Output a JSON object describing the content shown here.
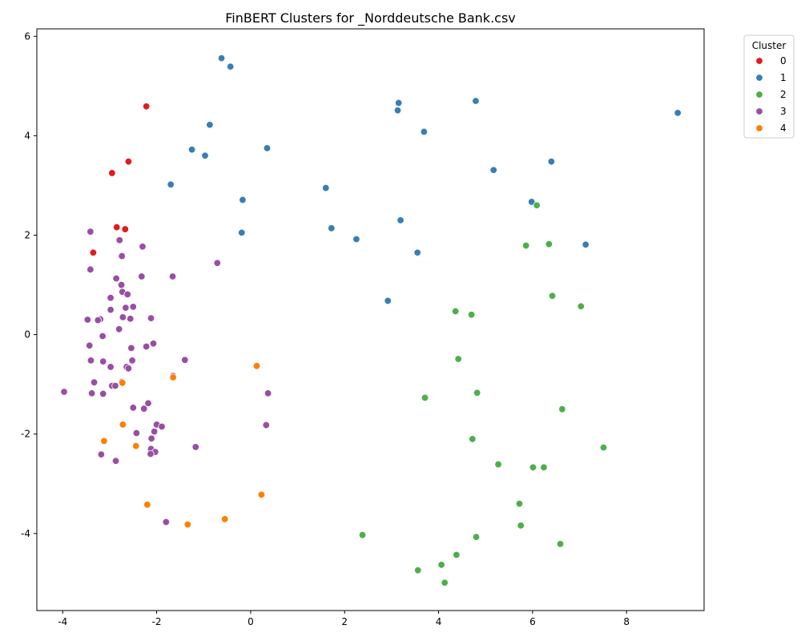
{
  "chart_data": {
    "type": "scatter",
    "title": "FinBERT Clusters for _Norddeutsche Bank.csv",
    "xlabel": "",
    "ylabel": "",
    "xlim": [
      -4.55,
      9.65
    ],
    "ylim": [
      -5.55,
      6.15
    ],
    "x_ticks": [
      -4,
      -2,
      0,
      2,
      4,
      6,
      8
    ],
    "y_ticks": [
      -4,
      -2,
      0,
      2,
      4,
      6
    ],
    "grid": false,
    "legend": {
      "title": "Cluster",
      "placement": "outside-top-right"
    },
    "series": [
      {
        "name": "0",
        "color": "#e41a1c",
        "points": [
          [
            -2.22,
            4.59
          ],
          [
            -2.6,
            3.48
          ],
          [
            -2.95,
            3.25
          ],
          [
            -2.85,
            2.16
          ],
          [
            -2.67,
            2.12
          ],
          [
            -3.35,
            1.66
          ],
          [
            -3.35,
            1.65
          ]
        ]
      },
      {
        "name": "1",
        "color": "#377eb8",
        "points": [
          [
            -0.62,
            5.56
          ],
          [
            -0.43,
            5.39
          ],
          [
            -0.87,
            4.22
          ],
          [
            -1.25,
            3.72
          ],
          [
            -0.97,
            3.6
          ],
          [
            0.35,
            3.75
          ],
          [
            -1.7,
            3.02
          ],
          [
            -0.17,
            2.71
          ],
          [
            -0.19,
            2.05
          ],
          [
            3.15,
            4.66
          ],
          [
            3.13,
            4.51
          ],
          [
            4.79,
            4.7
          ],
          [
            3.69,
            4.08
          ],
          [
            5.17,
            3.31
          ],
          [
            6.4,
            3.48
          ],
          [
            1.6,
            2.95
          ],
          [
            3.19,
            2.3
          ],
          [
            1.72,
            2.14
          ],
          [
            2.25,
            1.92
          ],
          [
            3.55,
            1.65
          ],
          [
            5.98,
            2.67
          ],
          [
            7.13,
            1.81
          ],
          [
            2.92,
            0.68
          ],
          [
            9.09,
            4.46
          ]
        ]
      },
      {
        "name": "2",
        "color": "#4daf4a",
        "points": [
          [
            6.09,
            2.6
          ],
          [
            5.86,
            1.79
          ],
          [
            6.35,
            1.82
          ],
          [
            6.42,
            0.78
          ],
          [
            7.03,
            0.57
          ],
          [
            4.36,
            0.47
          ],
          [
            4.7,
            0.4
          ],
          [
            4.42,
            -0.49
          ],
          [
            4.82,
            -1.17
          ],
          [
            3.71,
            -1.27
          ],
          [
            6.63,
            -1.5
          ],
          [
            4.72,
            -2.1
          ],
          [
            7.51,
            -2.27
          ],
          [
            5.27,
            -2.61
          ],
          [
            6.01,
            -2.67
          ],
          [
            6.24,
            -2.67
          ],
          [
            5.72,
            -3.4
          ],
          [
            5.75,
            -3.84
          ],
          [
            2.38,
            -4.03
          ],
          [
            4.8,
            -4.07
          ],
          [
            6.59,
            -4.21
          ],
          [
            4.38,
            -4.43
          ],
          [
            4.06,
            -4.63
          ],
          [
            3.56,
            -4.74
          ],
          [
            4.13,
            -4.99
          ]
        ]
      },
      {
        "name": "3",
        "color": "#984ea3",
        "points": [
          [
            -3.41,
            2.07
          ],
          [
            -2.79,
            1.9
          ],
          [
            -2.3,
            1.77
          ],
          [
            -2.74,
            1.58
          ],
          [
            -3.41,
            1.31
          ],
          [
            -0.71,
            1.44
          ],
          [
            -2.86,
            1.13
          ],
          [
            -2.32,
            1.17
          ],
          [
            -1.66,
            1.17
          ],
          [
            -2.75,
            1.0
          ],
          [
            -2.73,
            0.86
          ],
          [
            -2.62,
            0.81
          ],
          [
            -2.98,
            0.74
          ],
          [
            -2.66,
            0.54
          ],
          [
            -2.5,
            0.56
          ],
          [
            -2.98,
            0.5
          ],
          [
            -3.47,
            0.3
          ],
          [
            -3.2,
            0.31
          ],
          [
            -3.25,
            0.29
          ],
          [
            -2.72,
            0.35
          ],
          [
            -2.56,
            0.32
          ],
          [
            -2.12,
            0.33
          ],
          [
            -2.8,
            0.11
          ],
          [
            -3.15,
            -0.03
          ],
          [
            -3.43,
            -0.22
          ],
          [
            -2.22,
            -0.24
          ],
          [
            -2.07,
            -0.18
          ],
          [
            -2.54,
            -0.27
          ],
          [
            -3.4,
            -0.52
          ],
          [
            -2.52,
            -0.52
          ],
          [
            -1.4,
            -0.51
          ],
          [
            -3.14,
            -0.54
          ],
          [
            -2.98,
            -0.65
          ],
          [
            -2.64,
            -0.65
          ],
          [
            -2.6,
            -0.68
          ],
          [
            -3.33,
            -0.96
          ],
          [
            -1.65,
            -0.83
          ],
          [
            -2.74,
            -0.95
          ],
          [
            -2.95,
            -1.03
          ],
          [
            -2.88,
            -1.03
          ],
          [
            -3.97,
            -1.15
          ],
          [
            -3.38,
            -1.18
          ],
          [
            -3.14,
            -1.19
          ],
          [
            0.37,
            -1.18
          ],
          [
            -2.18,
            -1.38
          ],
          [
            -2.27,
            -1.49
          ],
          [
            -2.5,
            -1.47
          ],
          [
            -2.0,
            -1.81
          ],
          [
            -1.89,
            -1.85
          ],
          [
            0.33,
            -1.82
          ],
          [
            -2.05,
            -1.95
          ],
          [
            -2.43,
            -1.98
          ],
          [
            -2.11,
            -2.09
          ],
          [
            -1.17,
            -2.26
          ],
          [
            -2.12,
            -2.3
          ],
          [
            -2.03,
            -2.36
          ],
          [
            -2.13,
            -2.4
          ],
          [
            -3.18,
            -2.41
          ],
          [
            -2.87,
            -2.54
          ],
          [
            -1.8,
            -3.77
          ]
        ]
      },
      {
        "name": "4",
        "color": "#ff7f00",
        "points": [
          [
            0.13,
            -0.63
          ],
          [
            -1.65,
            -0.86
          ],
          [
            -2.73,
            -0.97
          ],
          [
            -2.72,
            -1.81
          ],
          [
            -3.12,
            -2.14
          ],
          [
            -2.44,
            -2.24
          ],
          [
            0.23,
            -3.22
          ],
          [
            -2.2,
            -3.42
          ],
          [
            -0.55,
            -3.71
          ],
          [
            -1.34,
            -3.82
          ]
        ]
      }
    ]
  }
}
